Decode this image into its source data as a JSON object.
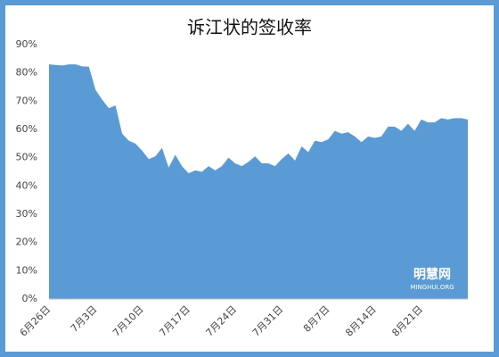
{
  "chart_data": {
    "type": "area",
    "title": "诉江状的签收率",
    "categories": [
      "6月26日",
      null,
      null,
      null,
      null,
      null,
      null,
      "7月3日",
      null,
      null,
      null,
      null,
      null,
      null,
      "7月10日",
      null,
      null,
      null,
      null,
      null,
      null,
      "7月17日",
      null,
      null,
      null,
      null,
      null,
      null,
      "7月24日",
      null,
      null,
      null,
      null,
      null,
      null,
      "7月31日",
      null,
      null,
      null,
      null,
      null,
      null,
      "8月7日",
      null,
      null,
      null,
      null,
      null,
      null,
      "8月14日",
      null,
      null,
      null,
      null,
      null,
      null,
      "8月21日",
      null,
      null,
      null,
      null,
      null,
      null,
      null
    ],
    "values": [
      83,
      82.8,
      82.6,
      83,
      83,
      82.3,
      82.2,
      74,
      70.5,
      67.5,
      68.5,
      58.5,
      56,
      55,
      52.5,
      49.5,
      50.5,
      53.5,
      46.5,
      51,
      47,
      44.5,
      45.5,
      45,
      47,
      45.5,
      47,
      50,
      48,
      47,
      48.5,
      50.5,
      48,
      48,
      47,
      49.5,
      51.5,
      49,
      54,
      52,
      56,
      55.5,
      56.5,
      59.5,
      58.5,
      59,
      57.5,
      55.5,
      57.5,
      57,
      57.5,
      61,
      61,
      59.5,
      62,
      59.5,
      63.5,
      62.5,
      62.5,
      64,
      63.5,
      64,
      64,
      63.5
    ],
    "color": "#5b9bd5",
    "ylim": [
      0,
      90
    ],
    "yticks": [
      {
        "value": 0,
        "label": "0%"
      },
      {
        "value": 10,
        "label": "10%"
      },
      {
        "value": 20,
        "label": "20%"
      },
      {
        "value": 30,
        "label": "30%"
      },
      {
        "value": 40,
        "label": "40%"
      },
      {
        "value": 50,
        "label": "50%"
      },
      {
        "value": 60,
        "label": "60%"
      },
      {
        "value": 70,
        "label": "70%"
      },
      {
        "value": 80,
        "label": "80%"
      },
      {
        "value": 90,
        "label": "90%"
      }
    ],
    "grid": false,
    "annotations": [
      "明慧网",
      "MINGHUI.ORG"
    ]
  }
}
